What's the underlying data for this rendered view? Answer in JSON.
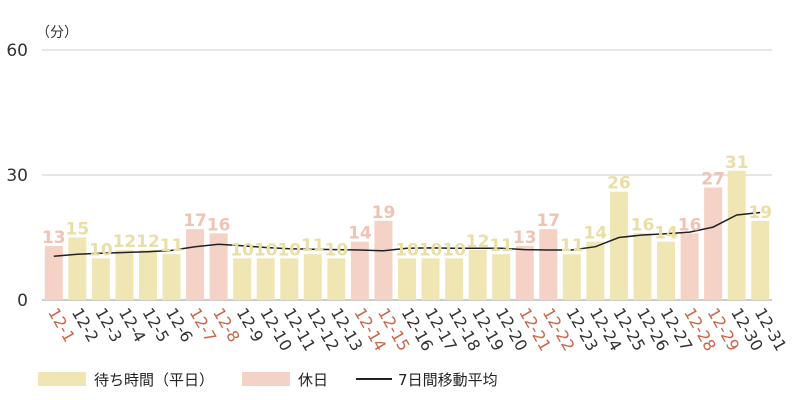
{
  "chart_data": {
    "type": "bar",
    "unit_label": "（分）",
    "y_ticks": [
      "0",
      "30",
      "60"
    ],
    "ylim": [
      0,
      60
    ],
    "grid": true,
    "categories": [
      "12-1",
      "12-2",
      "12-3",
      "12-4",
      "12-5",
      "12-6",
      "12-7",
      "12-8",
      "12-9",
      "12-10",
      "12-11",
      "12-12",
      "12-13",
      "12-14",
      "12-15",
      "12-16",
      "12-17",
      "12-18",
      "12-19",
      "12-20",
      "12-21",
      "12-22",
      "12-23",
      "12-24",
      "12-25",
      "12-26",
      "12-27",
      "12-28",
      "12-29",
      "12-30",
      "12-31"
    ],
    "values": [
      13,
      15,
      10,
      12,
      12,
      11,
      17,
      16,
      10,
      10,
      10,
      11,
      10,
      14,
      19,
      10,
      10,
      10,
      12,
      11,
      13,
      17,
      11,
      14,
      26,
      16,
      14,
      16,
      27,
      31,
      19
    ],
    "holiday": [
      true,
      false,
      false,
      false,
      false,
      false,
      true,
      true,
      false,
      false,
      false,
      false,
      false,
      true,
      true,
      false,
      false,
      false,
      false,
      false,
      true,
      true,
      false,
      false,
      false,
      false,
      false,
      true,
      true,
      false,
      false
    ],
    "moving_average": [
      10.5,
      11.0,
      11.2,
      11.4,
      11.6,
      11.9,
      12.8,
      13.4,
      13.0,
      12.6,
      12.3,
      12.2,
      12.1,
      12.0,
      11.8,
      12.4,
      12.5,
      12.4,
      12.4,
      12.4,
      12.1,
      12.0,
      12.0,
      12.8,
      15.0,
      15.6,
      15.9,
      16.3,
      17.5,
      20.4,
      21.0
    ],
    "legend_position": "bottom-left",
    "legend": {
      "weekday": "待ち時間（平日）",
      "holiday": "休日",
      "average": "7日間移動平均"
    },
    "colors": {
      "weekday": "#f0e6b3",
      "holiday": "#f4d2c6",
      "weekday_label": "#e9dfa6",
      "holiday_label": "#f0c4b4",
      "line": "#222222",
      "grid": "#cccccc",
      "tick": "#333333",
      "holiday_tick": "#c8664a"
    }
  }
}
